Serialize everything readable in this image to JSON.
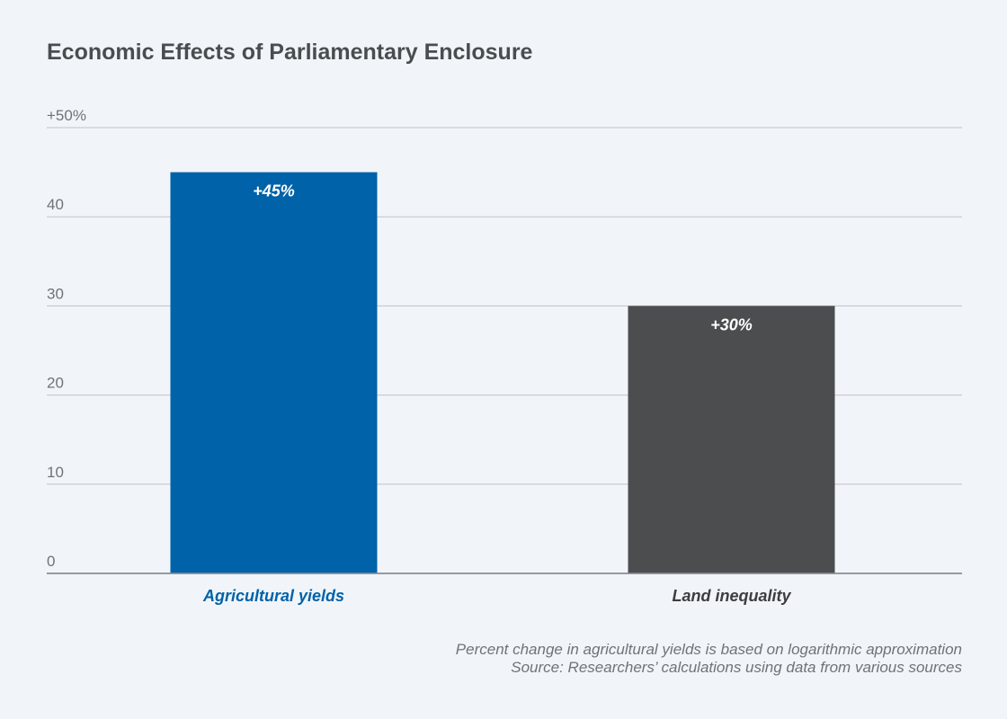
{
  "chart_data": {
    "type": "bar",
    "title": "Economic Effects of Parliamentary Enclosure",
    "categories": [
      "Agricultural yields",
      "Land inequality"
    ],
    "values": [
      45,
      30
    ],
    "value_labels": [
      "+45%",
      "+30%"
    ],
    "colors": [
      "#0062a8",
      "#4c4d4f"
    ],
    "category_label_colors": [
      "#0062a8",
      "#3c3d3f"
    ],
    "ylim": [
      0,
      50
    ],
    "yticks": [
      0,
      10,
      20,
      30,
      40,
      50
    ],
    "ytick_labels": [
      "0",
      "10",
      "20",
      "30",
      "40",
      "+50%"
    ],
    "grid": true,
    "notes": [
      "Percent change in agricultural yields is based on logarithmic approximation",
      "Source: Researchers’ calculations using data from various sources"
    ]
  }
}
